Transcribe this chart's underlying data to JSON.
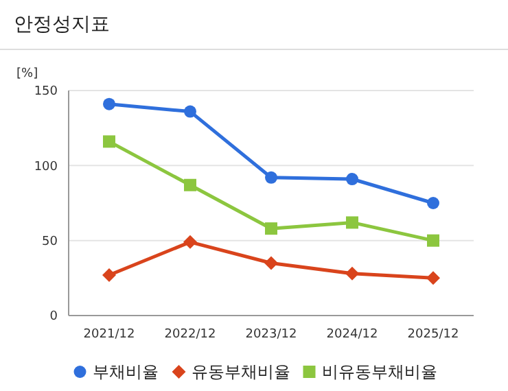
{
  "chart_data": {
    "type": "line",
    "title": "안정성지표",
    "ylabel": "[%]",
    "categories": [
      "2021/12",
      "2022/12",
      "2023/12",
      "2024/12",
      "2025/12"
    ],
    "series": [
      {
        "name": "부채비율",
        "color": "#2f6fdc",
        "marker": "circle",
        "values": [
          141,
          136,
          92,
          91,
          75
        ]
      },
      {
        "name": "유동부채비율",
        "color": "#d9441c",
        "marker": "diamond",
        "values": [
          27,
          49,
          35,
          28,
          25
        ]
      },
      {
        "name": "비유동부채비율",
        "color": "#8cc63f",
        "marker": "square",
        "values": [
          116,
          87,
          58,
          62,
          50
        ]
      }
    ],
    "ylim": [
      0,
      150
    ],
    "yticks": [
      0,
      50,
      100,
      150
    ],
    "grid": "y",
    "legend": "bottom",
    "line_style": "solid"
  }
}
